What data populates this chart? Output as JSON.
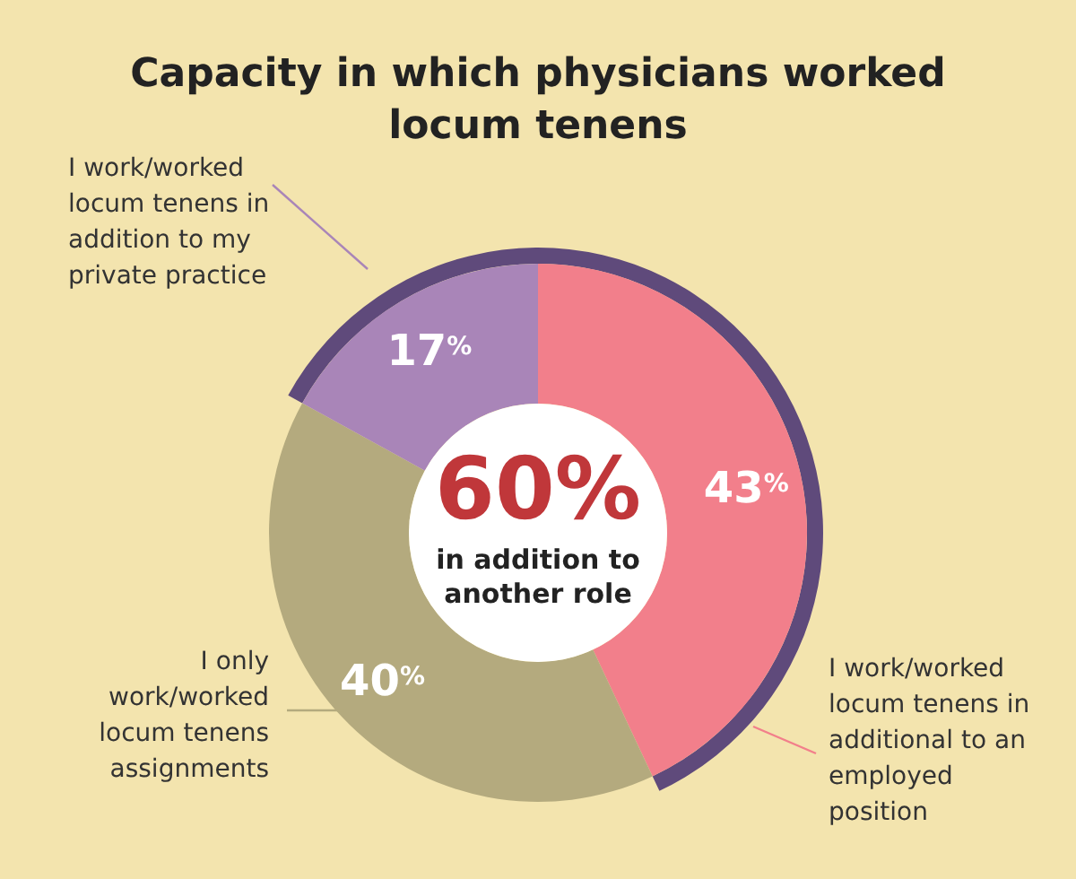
{
  "chart_data": {
    "type": "donut",
    "title": "Capacity in which physicians worked locum tenens",
    "categories": [
      "I work/worked locum tenens in additional to an employed position",
      "I only work/worked locum tenens assignments",
      "I work/worked locum tenens in addition to my private practice"
    ],
    "values": [
      43,
      40,
      17
    ],
    "colors": [
      "#f27f8b",
      "#b4aa7e",
      "#a985b8"
    ],
    "value_labels": [
      "43$^{%}$",
      "40$^{%}$",
      "17$^{%}$"
    ],
    "annotations": [
      "60%",
      "in addition to another role"
    ]
  }
}
